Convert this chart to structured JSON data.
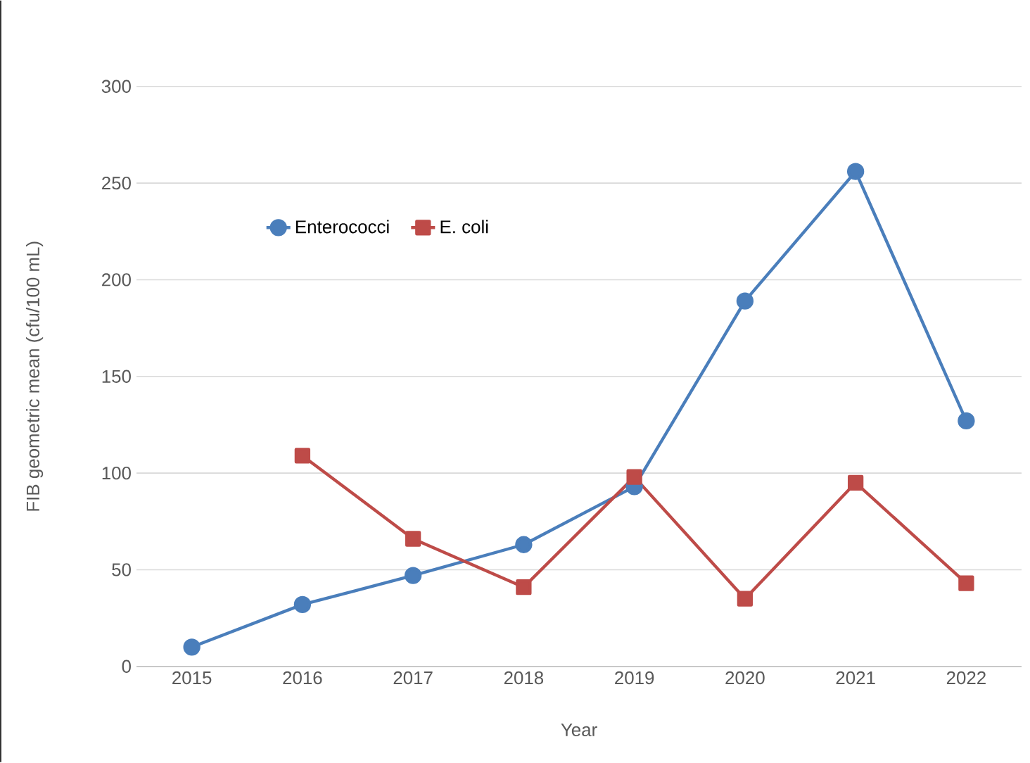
{
  "chart_data": {
    "type": "line",
    "xlabel": "Year",
    "ylabel": "FIB geometric mean (cfu/100 mL)",
    "categories": [
      "2015",
      "2016",
      "2017",
      "2018",
      "2019",
      "2020",
      "2021",
      "2022"
    ],
    "series": [
      {
        "name": "Enterococci",
        "color": "#4a7ebb",
        "marker": "circle",
        "values": [
          10,
          32,
          47,
          63,
          93,
          189,
          256,
          127
        ]
      },
      {
        "name": "E. coli",
        "color": "#be4b48",
        "marker": "square",
        "values": [
          null,
          109,
          66,
          41,
          98,
          35,
          95,
          43
        ]
      }
    ],
    "ylim": [
      0,
      300
    ],
    "yticks": [
      0,
      50,
      100,
      150,
      200,
      250,
      300
    ],
    "grid": "y",
    "legend": "top left",
    "line_style": "solid"
  }
}
